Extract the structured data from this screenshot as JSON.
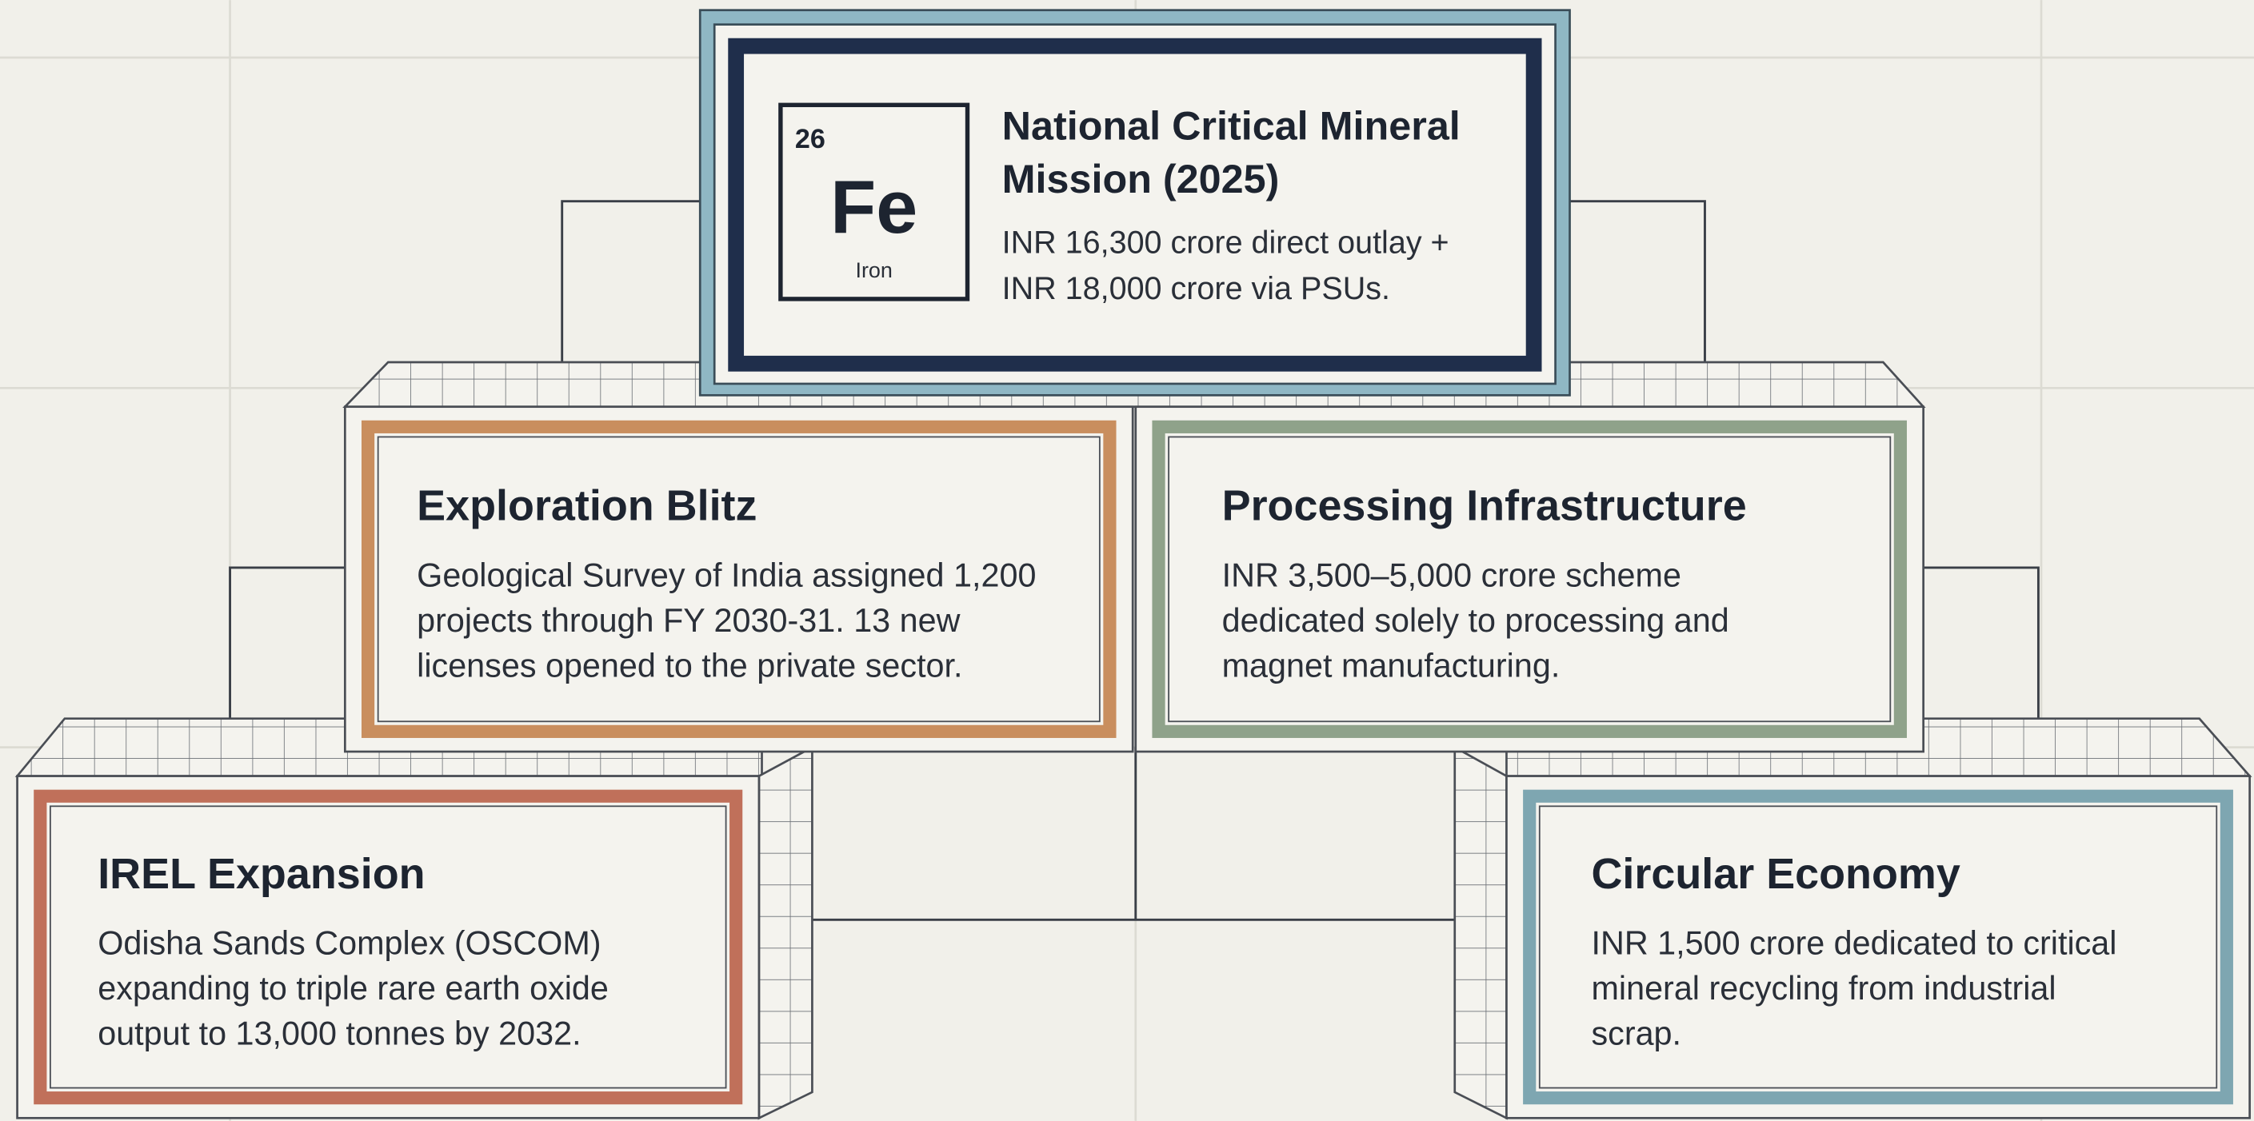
{
  "header": {
    "element": {
      "number": "26",
      "symbol": "Fe",
      "name": "Iron"
    },
    "title_lines": [
      "National Critical Mineral",
      "Mission (2025)"
    ],
    "lines": [
      "INR 16,300 crore direct outlay +",
      "INR 18,000 crore via PSUs."
    ]
  },
  "nodes": [
    {
      "title": "Exploration Blitz",
      "lines": [
        "Geological Survey of India assigned 1,200",
        "projects through FY 2030-31. 13 new",
        "licenses opened to the private sector."
      ]
    },
    {
      "title": "Processing Infrastructure",
      "lines": [
        "INR 3,500–5,000 crore scheme",
        "dedicated solely to processing and",
        "magnet manufacturing."
      ]
    },
    {
      "title": "IREL Expansion",
      "lines": [
        "Odisha Sands Complex (OSCOM)",
        "expanding to triple rare earth oxide",
        "output to 13,000 tonnes by 2032."
      ]
    },
    {
      "title": "Circular Economy",
      "lines": [
        "INR 1,500 crore dedicated to critical",
        "mineral recycling from industrial",
        "scrap."
      ]
    }
  ]
}
